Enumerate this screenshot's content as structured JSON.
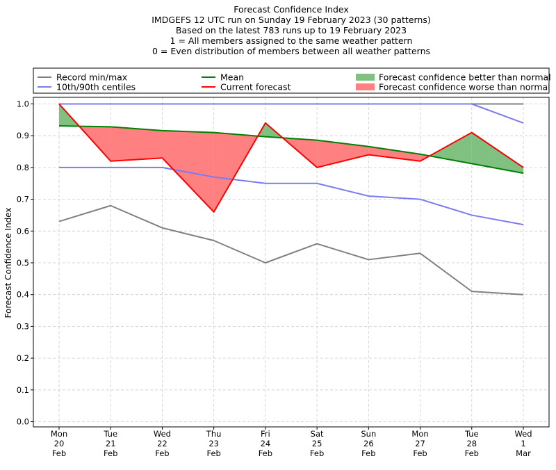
{
  "chart_data": {
    "type": "line",
    "title": [
      "Forecast Confidence Index",
      "IMDGEFS 12 UTC run on Sunday 19 February 2023 (30 patterns)",
      "Based on the latest 783 runs up to 19 February 2023",
      "1 = All members assigned to the same weather pattern",
      "0 = Even distribution of members between all weather patterns"
    ],
    "ylabel": "Forecast Confidence Index",
    "ylim": [
      0,
      1
    ],
    "yticks": [
      "0.0",
      "0.1",
      "0.2",
      "0.3",
      "0.4",
      "0.5",
      "0.6",
      "0.7",
      "0.8",
      "0.9",
      "1.0"
    ],
    "grid": true,
    "legend_position": "top",
    "categories": [
      [
        "Mon",
        "20",
        "Feb"
      ],
      [
        "Tue",
        "21",
        "Feb"
      ],
      [
        "Wed",
        "22",
        "Feb"
      ],
      [
        "Thu",
        "23",
        "Feb"
      ],
      [
        "Fri",
        "24",
        "Feb"
      ],
      [
        "Sat",
        "25",
        "Feb"
      ],
      [
        "Sun",
        "26",
        "Feb"
      ],
      [
        "Mon",
        "27",
        "Feb"
      ],
      [
        "Tue",
        "28",
        "Feb"
      ],
      [
        "Wed",
        "1",
        "Mar"
      ]
    ],
    "series": {
      "record_min": [
        0.63,
        0.68,
        0.61,
        0.57,
        0.5,
        0.56,
        0.51,
        0.53,
        0.41,
        0.4
      ],
      "record_max": [
        1.0,
        1.0,
        1.0,
        1.0,
        1.0,
        1.0,
        1.0,
        1.0,
        1.0,
        1.0
      ],
      "centile_10": [
        0.8,
        0.8,
        0.8,
        0.77,
        0.75,
        0.75,
        0.71,
        0.7,
        0.65,
        0.62
      ],
      "centile_90": [
        1.0,
        1.0,
        1.0,
        1.0,
        1.0,
        1.0,
        1.0,
        1.0,
        1.0,
        0.94
      ],
      "mean": [
        0.931,
        0.928,
        0.916,
        0.91,
        0.897,
        0.886,
        0.866,
        0.842,
        0.812,
        0.782
      ],
      "current": [
        1.0,
        0.82,
        0.83,
        0.66,
        0.94,
        0.8,
        0.84,
        0.82,
        0.91,
        0.8
      ]
    },
    "legend": {
      "record": "Record min/max",
      "centiles": "10th/90th centiles",
      "mean": "Mean",
      "current": "Current forecast",
      "better": "Forecast confidence better than normal",
      "worse": "Forecast confidence worse than normal"
    },
    "colors": {
      "record": "#808080",
      "centiles": "#7b7bf0",
      "mean": "#008000",
      "current": "#ff0000",
      "better": "#80c080",
      "worse": "#ff8080",
      "grid": "#cccccc"
    }
  }
}
